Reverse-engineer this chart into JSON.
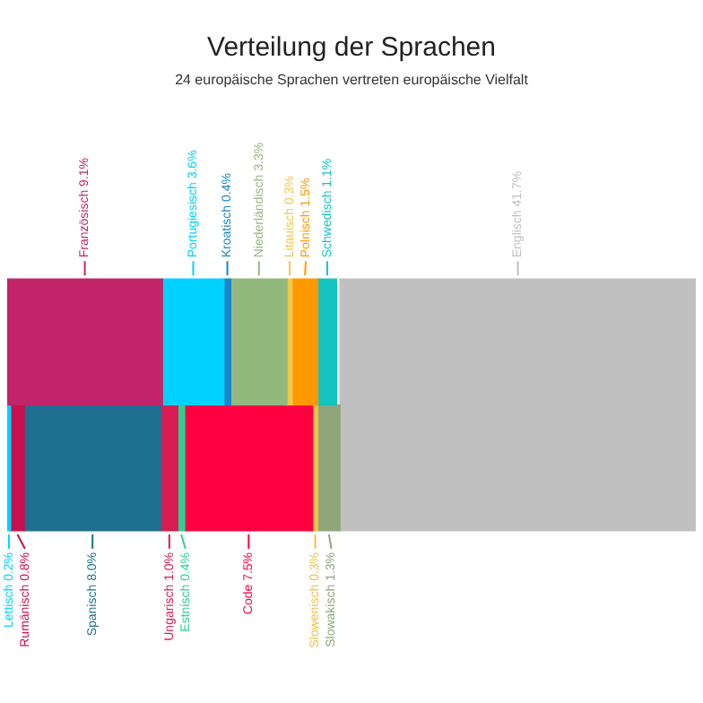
{
  "chart_data": {
    "type": "other",
    "title": "Verteilung der Sprachen",
    "subtitle": "24 europäische Sprachen vertreten europäische Vielfalt",
    "categories": [
      "Französisch",
      "Portugiesisch",
      "Kroatisch",
      "Niederländisch",
      "Litauisch",
      "Polnisch",
      "Schwedisch",
      "Lettisch",
      "Rumänisch",
      "Spanisch",
      "Ungarisch",
      "Estnisch",
      "Code",
      "Slowenisch",
      "Slowakisch",
      "Englisch"
    ],
    "values": [
      9.1,
      3.6,
      0.4,
      3.3,
      0.3,
      1.5,
      1.1,
      0.2,
      0.8,
      8.0,
      1.0,
      0.4,
      7.5,
      0.3,
      1.3,
      41.7
    ],
    "value_labels": [
      "9.1%",
      "3.6%",
      "0.4%",
      "3.3%",
      "0.3%",
      "1.5%",
      "1.1%",
      "0.2%",
      "0.8%",
      "8.0%",
      "1.0%",
      "0.4%",
      "7.5%",
      "0.3%",
      "1.3%",
      "41.7%"
    ],
    "colors": [
      "#c2246a",
      "#00d2ff",
      "#1a86c8",
      "#93b87e",
      "#f2c84b",
      "#ff9900",
      "#14c4c0",
      "#00d2ff",
      "#c8104f",
      "#1f7090",
      "#d81b50",
      "#2fd08f",
      "#ff0040",
      "#efc24a",
      "#8fa67a",
      "#c0c0c0"
    ]
  }
}
